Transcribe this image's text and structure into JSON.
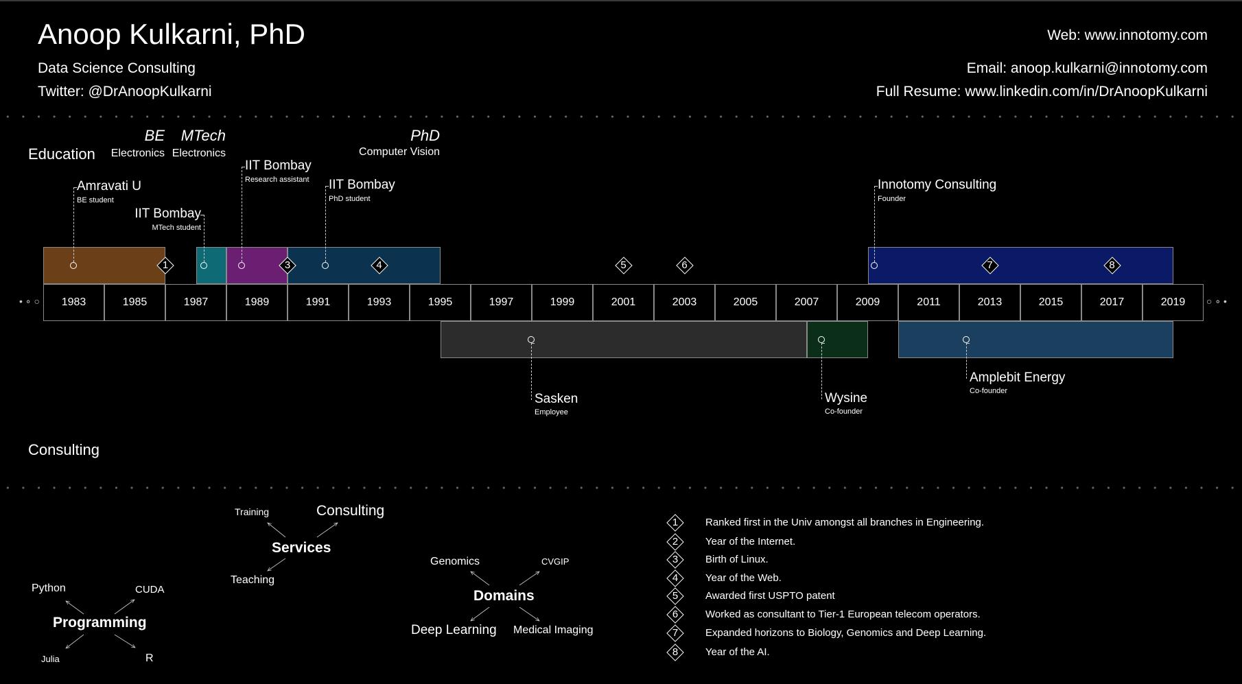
{
  "header": {
    "name": "Anoop Kulkarni, PhD",
    "tagline": "Data Science Consulting",
    "twitter": "Twitter: @DrAnoopKulkarni",
    "web": "Web: www.innotomy.com",
    "email": "Email: anoop.kulkarni@innotomy.com",
    "resume": "Full Resume: www.linkedin.com/in/DrAnoopKulkarni"
  },
  "sections": {
    "education": "Education",
    "consulting": "Consulting"
  },
  "degrees": [
    {
      "title": "BE",
      "subject": "Electronics"
    },
    {
      "title": "MTech",
      "subject": "Electronics"
    },
    {
      "title": "PhD",
      "subject": "Computer Vision"
    }
  ],
  "timeline": {
    "years": [
      "1983",
      "1985",
      "1987",
      "1989",
      "1991",
      "1993",
      "1995",
      "1997",
      "1999",
      "2001",
      "2003",
      "2005",
      "2007",
      "2009",
      "2011",
      "2013",
      "2015",
      "2017",
      "2019"
    ],
    "education_periods": [
      {
        "org": "Amravati U",
        "role": "BE student",
        "color": "#6b3f17",
        "start": 1982,
        "end": 1986
      },
      {
        "org": "IIT Bombay",
        "role": "MTech student",
        "color": "#0e6a74",
        "start": 1987,
        "end": 1988
      },
      {
        "org": "IIT Bombay",
        "role": "Research assistant",
        "color": "#6a1f72",
        "start": 1988,
        "end": 1990
      },
      {
        "org": "IIT Bombay",
        "role": "PhD student",
        "color": "#0b3350",
        "start": 1990,
        "end": 1995
      },
      {
        "org": "Innotomy Consulting",
        "role": "Founder",
        "color": "#0a1a66",
        "start": 2009,
        "end": 2019
      }
    ],
    "work_periods": [
      {
        "org": "Sasken",
        "role": "Employee",
        "color": "#2c2c2c",
        "start": 1995,
        "end": 2007
      },
      {
        "org": "Wysine",
        "role": "Co-founder",
        "color": "#0b2e19",
        "start": 2007,
        "end": 2009
      },
      {
        "org": "Amplebit Energy",
        "role": "Co-founder",
        "color": "#1a3f5f",
        "start": 2010,
        "end": 2019
      }
    ],
    "events": [
      {
        "n": "1",
        "year": 1986
      },
      {
        "n": "2",
        "year": 1990
      },
      {
        "n": "3",
        "year": 1990
      },
      {
        "n": "4",
        "year": 1993
      },
      {
        "n": "5",
        "year": 2001
      },
      {
        "n": "6",
        "year": 2003
      },
      {
        "n": "7",
        "year": 2013
      },
      {
        "n": "8",
        "year": 2017
      }
    ]
  },
  "mindmaps": {
    "programming": {
      "title": "Programming",
      "items": [
        "Python",
        "CUDA",
        "Julia",
        "R"
      ]
    },
    "services": {
      "title": "Services",
      "items": [
        "Training",
        "Consulting",
        "Teaching"
      ]
    },
    "domains": {
      "title": "Domains",
      "items": [
        "Genomics",
        "CVGIP",
        "Deep Learning",
        "Medical Imaging"
      ]
    }
  },
  "legend": [
    {
      "n": "1",
      "text": "Ranked first in the Univ amongst all branches in Engineering."
    },
    {
      "n": "2",
      "text": "Year of the Internet."
    },
    {
      "n": "3",
      "text": "Birth of Linux."
    },
    {
      "n": "4",
      "text": "Year of the Web."
    },
    {
      "n": "5",
      "text": "Awarded first USPTO patent"
    },
    {
      "n": "6",
      "text": "Worked as consultant to Tier-1 European telecom operators."
    },
    {
      "n": "7",
      "text": "Expanded horizons to Biology, Genomics and Deep Learning."
    },
    {
      "n": "8",
      "text": "Year of the AI."
    }
  ]
}
